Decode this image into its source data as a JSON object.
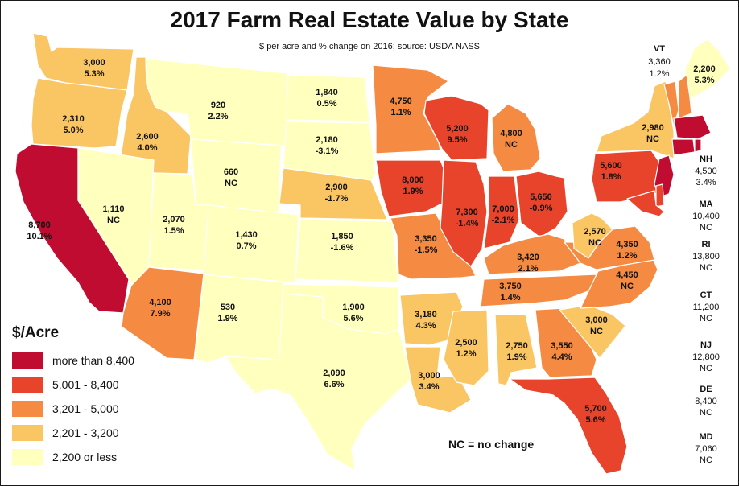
{
  "title": "2017 Farm Real Estate Value by State",
  "subtitle": "$ per acre and % change on 2016; source: USDA NASS",
  "legend": {
    "title": "$/Acre",
    "items": [
      {
        "label": "more than 8,400",
        "color": "#c00c30"
      },
      {
        "label": "5,001 - 8,400",
        "color": "#e8442c"
      },
      {
        "label": "3,201 - 5,000",
        "color": "#f58b42"
      },
      {
        "label": "2,201 - 3,200",
        "color": "#fac563"
      },
      {
        "label": "2,200 or less",
        "color": "#ffffbe"
      }
    ]
  },
  "nc_note": "NC = no change",
  "states": {
    "WA": {
      "value": "3,000",
      "change": "5.3%"
    },
    "OR": {
      "value": "2,310",
      "change": "5.0%"
    },
    "CA": {
      "value": "8,700",
      "change": "10.1%"
    },
    "ID": {
      "value": "2,600",
      "change": "4.0%"
    },
    "NV": {
      "value": "1,110",
      "change": "NC"
    },
    "MT": {
      "value": "920",
      "change": "2.2%"
    },
    "WY": {
      "value": "660",
      "change": "NC"
    },
    "UT": {
      "value": "2,070",
      "change": "1.5%"
    },
    "CO": {
      "value": "1,430",
      "change": "0.7%"
    },
    "AZ": {
      "value": "4,100",
      "change": "7.9%"
    },
    "NM": {
      "value": "530",
      "change": "1.9%"
    },
    "ND": {
      "value": "1,840",
      "change": "0.5%"
    },
    "SD": {
      "value": "2,180",
      "change": "-3.1%"
    },
    "NE": {
      "value": "2,900",
      "change": "-1.7%"
    },
    "KS": {
      "value": "1,850",
      "change": "-1.6%"
    },
    "OK": {
      "value": "1,900",
      "change": "5.6%"
    },
    "TX": {
      "value": "2,090",
      "change": "6.6%"
    },
    "MN": {
      "value": "4,750",
      "change": "1.1%"
    },
    "IA": {
      "value": "8,000",
      "change": "1.9%"
    },
    "MO": {
      "value": "3,350",
      "change": "-1.5%"
    },
    "AR": {
      "value": "3,180",
      "change": "4.3%"
    },
    "LA": {
      "value": "3,000",
      "change": "3.4%"
    },
    "WI": {
      "value": "5,200",
      "change": "9.5%"
    },
    "IL": {
      "value": "7,300",
      "change": "-1.4%"
    },
    "MI": {
      "value": "4,800",
      "change": "NC"
    },
    "IN": {
      "value": "7,000",
      "change": "-2.1%"
    },
    "OH": {
      "value": "5,650",
      "change": "-0.9%"
    },
    "KY": {
      "value": "3,420",
      "change": "2.1%"
    },
    "TN": {
      "value": "3,750",
      "change": "1.4%"
    },
    "MS": {
      "value": "2,500",
      "change": "1.2%"
    },
    "AL": {
      "value": "2,750",
      "change": "1.9%"
    },
    "GA": {
      "value": "3,550",
      "change": "4.4%"
    },
    "FL": {
      "value": "5,700",
      "change": "5.6%"
    },
    "SC": {
      "value": "3,000",
      "change": "NC"
    },
    "NC": {
      "value": "4,450",
      "change": "NC"
    },
    "VA": {
      "value": "4,350",
      "change": "1.2%"
    },
    "WV": {
      "value": "2,570",
      "change": "NC"
    },
    "PA": {
      "value": "5,600",
      "change": "1.8%"
    },
    "NY": {
      "value": "2,980",
      "change": "NC"
    },
    "ME": {
      "value": "2,200",
      "change": "5.3%"
    },
    "VT": {
      "value": "3,360",
      "change": "1.2%"
    }
  },
  "side_labels": [
    {
      "state": "NH",
      "value": "4,500",
      "change": "3.4%"
    },
    {
      "state": "MA",
      "value": "10,400",
      "change": "NC"
    },
    {
      "state": "RI",
      "value": "13,800",
      "change": "NC"
    },
    {
      "state": "CT",
      "value": "11,200",
      "change": "NC"
    },
    {
      "state": "NJ",
      "value": "12,800",
      "change": "NC"
    },
    {
      "state": "DE",
      "value": "8,400",
      "change": "NC"
    },
    {
      "state": "MD",
      "value": "7,060",
      "change": "NC"
    }
  ]
}
